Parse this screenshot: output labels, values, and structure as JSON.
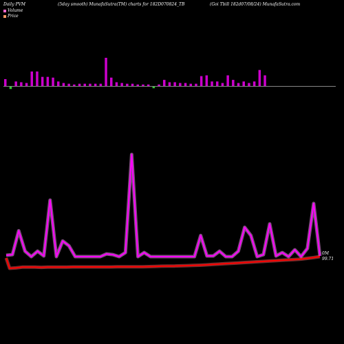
{
  "header": {
    "left": "Daily PVM",
    "center": "(5day smooth) MunafaSutra(TM) charts for 182D070824_TB",
    "right": "(Goi  Tbill 182d07/08/24) MunafaSutra.com"
  },
  "legend": [
    {
      "label": "Volume",
      "color": "#ff66cc"
    },
    {
      "label": "Price",
      "color": "#ff9966"
    }
  ],
  "tags": {
    "volume": "0M",
    "price": "99.71"
  },
  "colors": {
    "volume_up": "#cc00cc",
    "volume_down": "#33cc33",
    "line": "#ff00ff",
    "price": "#ff0000",
    "baseline": "#888888"
  },
  "chart_data": {
    "type": "bar+line",
    "volume_bars": [
      {
        "up": true,
        "value": 9
      },
      {
        "up": false,
        "value": 3
      },
      {
        "up": true,
        "value": 6
      },
      {
        "up": true,
        "value": 5
      },
      {
        "up": true,
        "value": 4
      },
      {
        "up": true,
        "value": 19
      },
      {
        "up": true,
        "value": 19
      },
      {
        "up": true,
        "value": 12
      },
      {
        "up": true,
        "value": 12
      },
      {
        "up": true,
        "value": 11
      },
      {
        "up": true,
        "value": 6
      },
      {
        "up": true,
        "value": 4
      },
      {
        "up": true,
        "value": 3
      },
      {
        "up": true,
        "value": 2
      },
      {
        "up": true,
        "value": 3
      },
      {
        "up": true,
        "value": 3
      },
      {
        "up": true,
        "value": 3
      },
      {
        "up": true,
        "value": 3
      },
      {
        "up": true,
        "value": 3
      },
      {
        "up": true,
        "value": 37
      },
      {
        "up": true,
        "value": 11
      },
      {
        "up": true,
        "value": 5
      },
      {
        "up": true,
        "value": 4
      },
      {
        "up": true,
        "value": 3
      },
      {
        "up": true,
        "value": 3
      },
      {
        "up": true,
        "value": 2
      },
      {
        "up": true,
        "value": 2
      },
      {
        "up": true,
        "value": 2
      },
      {
        "up": false,
        "value": 2
      },
      {
        "up": true,
        "value": 2
      },
      {
        "up": true,
        "value": 8
      },
      {
        "up": true,
        "value": 5
      },
      {
        "up": true,
        "value": 5
      },
      {
        "up": true,
        "value": 4
      },
      {
        "up": true,
        "value": 4
      },
      {
        "up": true,
        "value": 3
      },
      {
        "up": true,
        "value": 3
      },
      {
        "up": true,
        "value": 13
      },
      {
        "up": true,
        "value": 14
      },
      {
        "up": true,
        "value": 6
      },
      {
        "up": true,
        "value": 6
      },
      {
        "up": true,
        "value": 4
      },
      {
        "up": true,
        "value": 14
      },
      {
        "up": true,
        "value": 8
      },
      {
        "up": true,
        "value": 4
      },
      {
        "up": true,
        "value": 6
      },
      {
        "up": true,
        "value": 4
      },
      {
        "up": true,
        "value": 6
      },
      {
        "up": true,
        "value": 21
      },
      {
        "up": true,
        "value": 14
      }
    ],
    "volume_line": [
      4,
      5,
      40,
      10,
      2,
      10,
      3,
      85,
      2,
      25,
      18,
      2,
      2,
      2,
      2,
      2,
      6,
      5,
      2,
      8,
      152,
      2,
      8,
      2,
      2,
      2,
      2,
      2,
      2,
      2,
      2,
      33,
      3,
      3,
      10,
      2,
      2,
      10,
      45,
      33,
      2,
      5,
      50,
      3,
      8,
      2,
      12,
      2,
      14,
      80,
      3
    ],
    "price_line": [
      99.1,
      99.12,
      99.16,
      99.16,
      99.16,
      99.15,
      99.16,
      99.16,
      99.16,
      99.16,
      99.17,
      99.17,
      99.17,
      99.17,
      99.17,
      99.17,
      99.17,
      99.18,
      99.18,
      99.18,
      99.18,
      99.18,
      99.19,
      99.2,
      99.21,
      99.22,
      99.22,
      99.23,
      99.24,
      99.25,
      99.26,
      99.28,
      99.3,
      99.32,
      99.34,
      99.36,
      99.38,
      99.4,
      99.42,
      99.44,
      99.46,
      99.48,
      99.5,
      99.52,
      99.54,
      99.56,
      99.58,
      99.62,
      99.66,
      99.71
    ]
  }
}
